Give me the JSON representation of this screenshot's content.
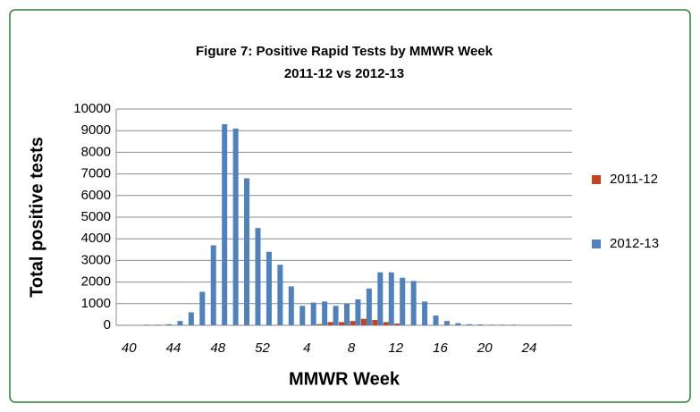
{
  "chart_data": {
    "type": "bar",
    "title": "Figure 7: Positive Rapid Tests by MMWR Week",
    "subtitle": "2011-12 vs 2012-13",
    "x_label": "MMWR Week",
    "y_label": "Total positive tests",
    "categories": [
      "40",
      null,
      null,
      null,
      "44",
      null,
      null,
      null,
      "48",
      null,
      null,
      null,
      "52",
      null,
      null,
      null,
      "4",
      null,
      null,
      null,
      "8",
      null,
      null,
      null,
      "12",
      null,
      null,
      null,
      "16",
      null,
      null,
      null,
      "20",
      null,
      null,
      null,
      "24",
      null,
      null,
      null,
      null
    ],
    "series": [
      {
        "name": "2011-12",
        "color": "#c0441f",
        "values": [
          10,
          10,
          10,
          10,
          10,
          10,
          10,
          10,
          10,
          10,
          10,
          10,
          10,
          10,
          10,
          10,
          10,
          10,
          50,
          150,
          150,
          200,
          300,
          250,
          150,
          80,
          10,
          10,
          10,
          10,
          10,
          10,
          10,
          10,
          10,
          10,
          10,
          10,
          10,
          10,
          10
        ]
      },
      {
        "name": "2012-13",
        "color": "#4f81bd",
        "values": [
          20,
          20,
          30,
          30,
          50,
          200,
          600,
          1550,
          3700,
          9300,
          9100,
          6800,
          4500,
          3400,
          2800,
          1800,
          900,
          1050,
          1100,
          900,
          1000,
          1200,
          1700,
          2450,
          2450,
          2200,
          2050,
          1100,
          450,
          200,
          100,
          50,
          40,
          30,
          30,
          30,
          20,
          20,
          20,
          20,
          20
        ]
      }
    ],
    "ylim": [
      0,
      10000
    ],
    "yticks": [
      0,
      1000,
      2000,
      3000,
      4000,
      5000,
      6000,
      7000,
      8000,
      9000,
      10000
    ],
    "grid": true,
    "legend": "right"
  }
}
